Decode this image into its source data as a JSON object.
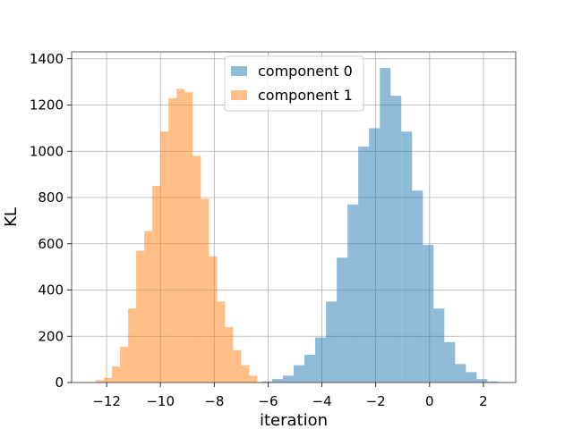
{
  "chart_data": {
    "type": "bar",
    "title": "",
    "xlabel": "iteration",
    "ylabel": "KL",
    "xlim": [
      -13.3,
      3.2
    ],
    "ylim": [
      0,
      1430
    ],
    "xticks": [
      -12,
      -10,
      -8,
      -6,
      -4,
      -2,
      0,
      2
    ],
    "xtick_labels": [
      "−12",
      "−10",
      "−8",
      "−6",
      "−4",
      "−2",
      "0",
      "2"
    ],
    "yticks": [
      0,
      200,
      400,
      600,
      800,
      1000,
      1200,
      1400
    ],
    "ytick_labels": [
      "0",
      "200",
      "400",
      "600",
      "800",
      "1000",
      "1200",
      "1400"
    ],
    "grid": true,
    "legend_position": "top-center",
    "series": [
      {
        "name": "component 0",
        "color": "#1f77b4",
        "alpha": 0.5,
        "bin_width": 0.4,
        "bin_starts": [
          -6.25,
          -5.85,
          -5.45,
          -5.05,
          -4.65,
          -4.25,
          -3.85,
          -3.45,
          -3.05,
          -2.65,
          -2.25,
          -1.85,
          -1.45,
          -1.05,
          -0.65,
          -0.25,
          0.15,
          0.55,
          0.95,
          1.35,
          1.75,
          2.15
        ],
        "values": [
          5,
          15,
          30,
          75,
          120,
          195,
          350,
          540,
          770,
          1020,
          1100,
          1360,
          1240,
          1085,
          830,
          595,
          320,
          175,
          80,
          45,
          15,
          5
        ]
      },
      {
        "name": "component 1",
        "color": "#ff7f0e",
        "alpha": 0.5,
        "bin_width": 0.3,
        "bin_starts": [
          -12.4,
          -12.1,
          -11.8,
          -11.5,
          -11.2,
          -10.9,
          -10.6,
          -10.3,
          -10.0,
          -9.7,
          -9.4,
          -9.1,
          -8.8,
          -8.5,
          -8.2,
          -7.9,
          -7.6,
          -7.3,
          -7.0,
          -6.7
        ],
        "values": [
          10,
          20,
          70,
          155,
          320,
          570,
          655,
          850,
          1085,
          1230,
          1270,
          1255,
          980,
          795,
          545,
          350,
          240,
          140,
          75,
          30
        ]
      }
    ]
  }
}
